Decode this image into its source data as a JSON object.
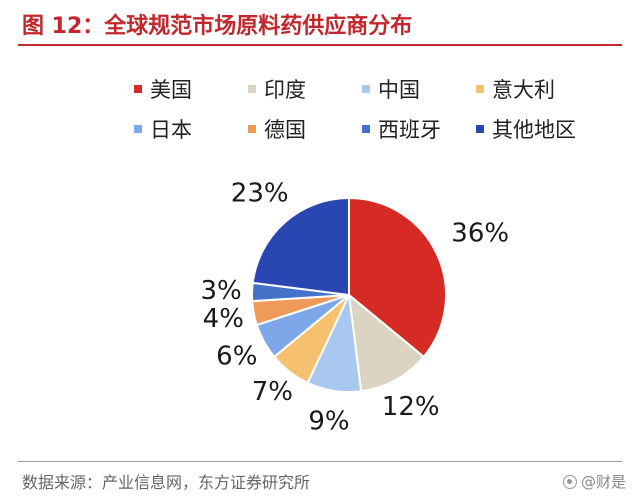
{
  "header": {
    "title": "图 12：全球规范市场原料药供应商分布"
  },
  "chart_data": {
    "type": "pie",
    "categories": [
      "美国",
      "印度",
      "中国",
      "意大利",
      "日本",
      "德国",
      "西班牙",
      "其他地区"
    ],
    "values": [
      36,
      12,
      9,
      7,
      6,
      4,
      3,
      23
    ],
    "value_labels": [
      "36%",
      "12%",
      "9%",
      "7%",
      "6%",
      "4%",
      "3%",
      "23%"
    ],
    "colors": [
      "#d52b24",
      "#dcd4c2",
      "#a9c8ef",
      "#f6c16e",
      "#7ea7ea",
      "#f09a5a",
      "#4472c8",
      "#2a46b3"
    ],
    "start": "12 o'clock",
    "direction": "clockwise",
    "legend_position": "top"
  },
  "footer": {
    "source": "数据来源：产业信息网，东方证券研究所",
    "watermark": "@财是"
  }
}
